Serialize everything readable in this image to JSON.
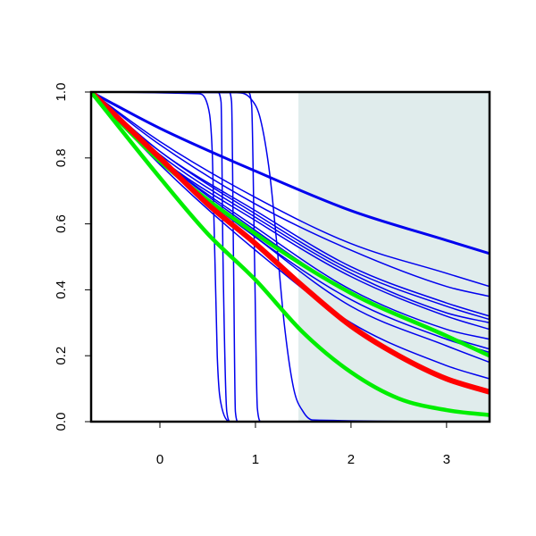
{
  "chart_data": {
    "type": "line",
    "title": "",
    "xlabel": "",
    "ylabel": "",
    "xlim": [
      -0.72,
      3.45
    ],
    "ylim": [
      0,
      1
    ],
    "x_ticks": [
      {
        "value": 0,
        "label": "0"
      },
      {
        "value": 1,
        "label": "1"
      },
      {
        "value": 2,
        "label": "2"
      },
      {
        "value": 3,
        "label": "3"
      }
    ],
    "y_ticks": [
      {
        "value": 0.0,
        "label": "0.0"
      },
      {
        "value": 0.2,
        "label": "0.2"
      },
      {
        "value": 0.4,
        "label": "0.4"
      },
      {
        "value": 0.6,
        "label": "0.6"
      },
      {
        "value": 0.8,
        "label": "0.8"
      },
      {
        "value": 1.0,
        "label": "1.0"
      }
    ],
    "grid": false,
    "legend": "none",
    "shaded_region": {
      "x_from": 1.45,
      "x_to": 3.45,
      "color": "#e0ecec"
    },
    "series": [
      {
        "color": "#0000ee",
        "width": 1.5,
        "x": [
          -0.72,
          0.4,
          0.5,
          0.55,
          0.6,
          0.65,
          0.75,
          3.45
        ],
        "y": [
          1,
          0.995,
          0.96,
          0.8,
          0.2,
          0.04,
          0.0,
          0.0
        ]
      },
      {
        "color": "#0000ee",
        "width": 1.5,
        "x": [
          -0.72,
          0.6,
          0.64,
          0.66,
          0.7,
          0.74,
          3.45
        ],
        "y": [
          1,
          1,
          0.97,
          0.5,
          0.03,
          0.0,
          0.0
        ]
      },
      {
        "color": "#0000ee",
        "width": 1.5,
        "x": [
          -0.72,
          0.72,
          0.75,
          0.77,
          0.79,
          0.82,
          3.45
        ],
        "y": [
          1,
          1,
          0.97,
          0.5,
          0.03,
          0.0,
          0.0
        ]
      },
      {
        "color": "#0000ee",
        "width": 1.5,
        "x": [
          -0.72,
          0.92,
          0.96,
          0.99,
          1.02,
          1.06,
          3.45
        ],
        "y": [
          1,
          1,
          0.96,
          0.5,
          0.04,
          0.0,
          0.0
        ]
      },
      {
        "color": "#0000ee",
        "width": 1.5,
        "x": [
          -0.72,
          0.8,
          0.95,
          1.05,
          1.15,
          1.22,
          1.3,
          1.4,
          1.5,
          1.6,
          3.45
        ],
        "y": [
          1,
          0.998,
          0.98,
          0.92,
          0.75,
          0.55,
          0.3,
          0.1,
          0.03,
          0.005,
          0.0
        ]
      },
      {
        "color": "#0000ee",
        "width": 3,
        "x": [
          -0.72,
          0,
          1,
          2,
          3,
          3.45
        ],
        "y": [
          1,
          0.89,
          0.76,
          0.64,
          0.55,
          0.51
        ]
      },
      {
        "color": "#0000ee",
        "width": 1.5,
        "x": [
          -0.72,
          0,
          1,
          2,
          3,
          3.45
        ],
        "y": [
          1,
          0.85,
          0.68,
          0.54,
          0.45,
          0.41
        ]
      },
      {
        "color": "#0000ee",
        "width": 1.5,
        "x": [
          -0.72,
          0,
          1,
          2,
          3,
          3.45
        ],
        "y": [
          1,
          0.84,
          0.66,
          0.52,
          0.41,
          0.38
        ]
      },
      {
        "color": "#0000ee",
        "width": 1.5,
        "x": [
          -0.72,
          0,
          1,
          2,
          3,
          3.45
        ],
        "y": [
          1,
          0.82,
          0.64,
          0.47,
          0.36,
          0.32
        ]
      },
      {
        "color": "#0000ee",
        "width": 1.5,
        "x": [
          -0.72,
          0,
          1,
          2,
          3,
          3.45
        ],
        "y": [
          1,
          0.82,
          0.63,
          0.46,
          0.35,
          0.31
        ]
      },
      {
        "color": "#0000ee",
        "width": 1.5,
        "x": [
          -0.72,
          0,
          1,
          2,
          3,
          3.45
        ],
        "y": [
          1,
          0.81,
          0.62,
          0.45,
          0.33,
          0.3
        ]
      },
      {
        "color": "#0000ee",
        "width": 1.5,
        "x": [
          -0.72,
          0,
          1,
          2,
          3,
          3.45
        ],
        "y": [
          1,
          0.8,
          0.61,
          0.44,
          0.32,
          0.28
        ]
      },
      {
        "color": "#0000ee",
        "width": 1.5,
        "x": [
          -0.72,
          0,
          1,
          2,
          3,
          3.45
        ],
        "y": [
          1,
          0.8,
          0.59,
          0.4,
          0.28,
          0.25
        ]
      },
      {
        "color": "#0000ee",
        "width": 1.5,
        "x": [
          -0.72,
          0,
          1,
          2,
          3,
          3.45
        ],
        "y": [
          1,
          0.8,
          0.58,
          0.39,
          0.26,
          0.22
        ]
      },
      {
        "color": "#0000ee",
        "width": 1.5,
        "x": [
          -0.72,
          0,
          1,
          2,
          3,
          3.45
        ],
        "y": [
          1,
          0.79,
          0.56,
          0.37,
          0.25,
          0.21
        ]
      },
      {
        "color": "#0000ee",
        "width": 1.5,
        "x": [
          -0.72,
          0,
          1,
          2,
          3,
          3.45
        ],
        "y": [
          1,
          0.79,
          0.56,
          0.35,
          0.23,
          0.18
        ]
      },
      {
        "color": "#0000ee",
        "width": 1.5,
        "x": [
          -0.72,
          0,
          1,
          2,
          3,
          3.45
        ],
        "y": [
          1,
          0.78,
          0.52,
          0.3,
          0.17,
          0.13
        ]
      },
      {
        "color": "#00ee00",
        "width": 4.5,
        "x": [
          -0.72,
          0,
          1,
          2,
          3,
          3.45
        ],
        "y": [
          1,
          0.79,
          0.57,
          0.39,
          0.26,
          0.2
        ]
      },
      {
        "color": "#ff0000",
        "width": 6,
        "x": [
          -0.72,
          0,
          0.5,
          1,
          1.5,
          2,
          2.5,
          3,
          3.45
        ],
        "y": [
          1,
          0.8,
          0.66,
          0.54,
          0.41,
          0.29,
          0.2,
          0.13,
          0.09
        ]
      },
      {
        "color": "#00ee00",
        "width": 4.5,
        "x": [
          -0.72,
          0,
          0.5,
          1,
          1.5,
          2,
          2.5,
          3,
          3.45
        ],
        "y": [
          1,
          0.74,
          0.57,
          0.43,
          0.27,
          0.15,
          0.07,
          0.035,
          0.02
        ]
      }
    ]
  }
}
